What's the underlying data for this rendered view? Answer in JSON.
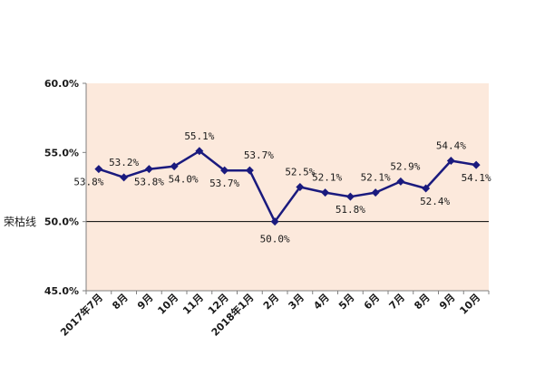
{
  "chart_data": {
    "type": "line",
    "categories": [
      "2017年7月",
      "8月",
      "9月",
      "10月",
      "11月",
      "12月",
      "2018年1月",
      "2月",
      "3月",
      "4月",
      "5月",
      "6月",
      "7月",
      "8月",
      "9月",
      "10月"
    ],
    "series": [
      {
        "values": [
          53.8,
          53.2,
          53.8,
          54.0,
          55.1,
          53.7,
          53.7,
          50.0,
          52.5,
          52.1,
          51.8,
          52.1,
          52.9,
          52.4,
          54.4,
          54.1
        ],
        "labels": [
          "53.8%",
          "53.2%",
          "53.8%",
          "54.0%",
          "55.1%",
          "53.7%",
          "53.7%",
          "50.0%",
          "52.5%",
          "52.1%",
          "51.8%",
          "52.1%",
          "52.9%",
          "52.4%",
          "54.4%",
          "54.1%"
        ],
        "color": "#1a1a7e"
      }
    ],
    "ylim": [
      45.0,
      60.0
    ],
    "yticks": [
      45.0,
      50.0,
      55.0,
      60.0
    ],
    "ytick_labels": [
      "45.0%",
      "50.0%",
      "55.0%",
      "60.0%"
    ],
    "reference_line": {
      "value": 50.0,
      "label": "荣枯线"
    },
    "plot_background": "#fce9dc",
    "grid": false,
    "title": "",
    "xlabel": "",
    "ylabel": ""
  }
}
